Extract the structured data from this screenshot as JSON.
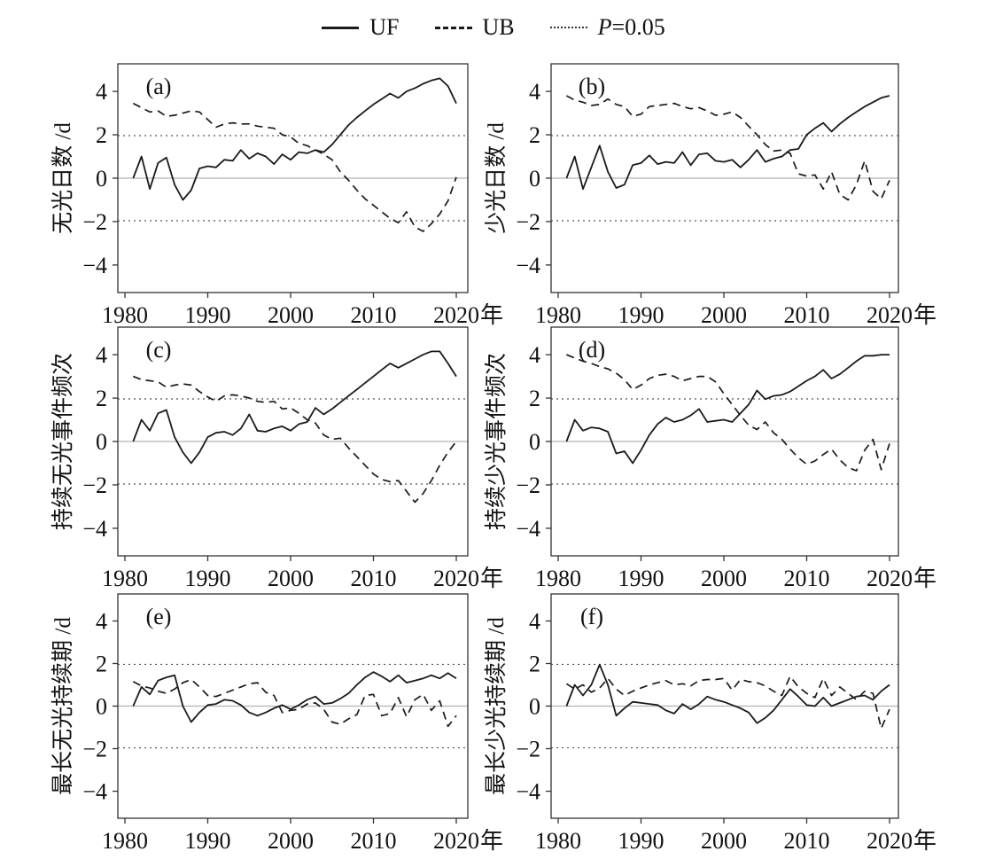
{
  "legend": {
    "items": [
      {
        "label": "UF",
        "line_style": "solid"
      },
      {
        "label": "UB",
        "line_style": "dashed"
      },
      {
        "prefix_italic": "P",
        "label": "=0.05",
        "line_style": "dotted"
      }
    ]
  },
  "chart_data": {
    "type": "line",
    "figure_kind": "Mann-Kendall abrupt-change test (UF/UB curves), 6 panels",
    "legend_position": "top-center",
    "grid": "off",
    "years": [
      1981,
      1982,
      1983,
      1984,
      1985,
      1986,
      1987,
      1988,
      1989,
      1990,
      1991,
      1992,
      1993,
      1994,
      1995,
      1996,
      1997,
      1998,
      1999,
      2000,
      2001,
      2002,
      2003,
      2004,
      2005,
      2006,
      2007,
      2008,
      2009,
      2010,
      2011,
      2012,
      2013,
      2014,
      2015,
      2016,
      2017,
      2018,
      2019,
      2020
    ],
    "xticks": [
      1980,
      1990,
      2000,
      2010,
      2020
    ],
    "x_unit_label": "年",
    "yticks": [
      -4,
      -2,
      0,
      2,
      4
    ],
    "ylim": [
      -5.27,
      5.27
    ],
    "significance_threshold": 1.96,
    "series_names": [
      "UF",
      "UB"
    ],
    "colors": {
      "uf_line": "#1a1a1a",
      "ub_line": "#1a1a1a",
      "p_line": "#555555",
      "zero_line": "#b3b3b3",
      "frame": "#333333"
    },
    "panels": [
      {
        "letter": "(a)",
        "ylabel": "无光日数 /d",
        "uf": [
          0,
          1.0,
          -0.5,
          0.7,
          0.95,
          -0.3,
          -1.0,
          -0.55,
          0.45,
          0.55,
          0.5,
          0.85,
          0.8,
          1.3,
          0.9,
          1.15,
          1.0,
          0.65,
          1.1,
          0.85,
          1.2,
          1.15,
          1.3,
          1.2,
          1.55,
          2.0,
          2.45,
          2.8,
          3.1,
          3.4,
          3.65,
          3.9,
          3.7,
          4.0,
          4.15,
          4.35,
          4.5,
          4.6,
          4.25,
          3.45
        ],
        "ub": [
          3.45,
          3.25,
          3.05,
          3.1,
          2.85,
          2.9,
          3.0,
          3.1,
          3.05,
          2.7,
          2.35,
          2.5,
          2.55,
          2.5,
          2.5,
          2.4,
          2.35,
          2.3,
          2.0,
          1.9,
          1.6,
          1.5,
          1.3,
          1.1,
          0.85,
          0.3,
          -0.1,
          -0.55,
          -0.95,
          -1.25,
          -1.55,
          -1.85,
          -2.05,
          -1.55,
          -2.25,
          -2.45,
          -2.1,
          -1.65,
          -1.05,
          0.05
        ]
      },
      {
        "letter": "(b)",
        "ylabel": "少光日数 /d",
        "uf": [
          0,
          1.0,
          -0.5,
          0.5,
          1.5,
          0.3,
          -0.45,
          -0.3,
          0.6,
          0.7,
          1.05,
          0.65,
          0.75,
          0.7,
          1.2,
          0.6,
          1.1,
          1.15,
          0.8,
          0.75,
          0.85,
          0.5,
          0.85,
          1.3,
          0.75,
          0.9,
          1.0,
          1.3,
          1.35,
          2.0,
          2.3,
          2.55,
          2.15,
          2.5,
          2.8,
          3.05,
          3.3,
          3.5,
          3.7,
          3.8
        ],
        "ub": [
          3.8,
          3.6,
          3.5,
          3.35,
          3.4,
          3.65,
          3.4,
          3.3,
          2.85,
          2.95,
          3.3,
          3.35,
          3.4,
          3.45,
          3.3,
          3.2,
          3.25,
          3.1,
          2.9,
          2.95,
          3.05,
          2.8,
          2.4,
          2.0,
          1.55,
          1.25,
          1.3,
          1.15,
          0.2,
          0.1,
          0.15,
          -0.5,
          0.3,
          -0.75,
          -1.0,
          -0.3,
          0.8,
          -0.6,
          -0.95,
          -0.1
        ]
      },
      {
        "letter": "(c)",
        "ylabel": "持续无光事件频次",
        "uf": [
          0,
          1.0,
          0.5,
          1.3,
          1.45,
          0.2,
          -0.5,
          -1.0,
          -0.5,
          0.2,
          0.4,
          0.45,
          0.3,
          0.6,
          1.25,
          0.5,
          0.45,
          0.6,
          0.7,
          0.5,
          0.8,
          0.9,
          1.55,
          1.25,
          1.5,
          1.8,
          2.1,
          2.4,
          2.7,
          3.0,
          3.3,
          3.6,
          3.4,
          3.6,
          3.8,
          4.0,
          4.15,
          4.15,
          3.6,
          3.0
        ],
        "ub": [
          3.0,
          2.85,
          2.8,
          2.75,
          2.5,
          2.6,
          2.65,
          2.6,
          2.3,
          2.05,
          1.85,
          2.1,
          2.15,
          2.1,
          2.0,
          1.85,
          1.8,
          1.85,
          1.5,
          1.55,
          1.3,
          1.0,
          0.85,
          0.3,
          0.1,
          0.15,
          -0.3,
          -0.7,
          -1.1,
          -1.5,
          -1.75,
          -1.85,
          -1.8,
          -2.3,
          -2.8,
          -2.4,
          -1.8,
          -1.1,
          -0.5,
          0.0
        ]
      },
      {
        "letter": "(d)",
        "ylabel": "持续少光事件频次",
        "uf": [
          0,
          1.0,
          0.5,
          0.65,
          0.6,
          0.45,
          -0.55,
          -0.45,
          -1.0,
          -0.4,
          0.3,
          0.8,
          1.1,
          0.9,
          1.0,
          1.2,
          1.5,
          0.9,
          0.95,
          1.0,
          0.9,
          1.3,
          1.7,
          2.35,
          1.95,
          2.1,
          2.15,
          2.3,
          2.55,
          2.8,
          3.0,
          3.3,
          2.9,
          3.1,
          3.4,
          3.7,
          3.95,
          3.95,
          4.0,
          4.0
        ],
        "ub": [
          4.0,
          3.85,
          3.7,
          3.6,
          3.45,
          3.35,
          3.15,
          2.85,
          2.4,
          2.6,
          2.9,
          3.05,
          3.1,
          3.0,
          2.8,
          2.9,
          3.0,
          3.0,
          2.75,
          2.2,
          1.7,
          1.2,
          0.75,
          0.55,
          0.9,
          0.4,
          0.1,
          -0.35,
          -0.75,
          -1.05,
          -0.9,
          -0.6,
          -0.35,
          -0.85,
          -1.2,
          -1.35,
          -0.4,
          0.1,
          -1.3,
          -0.1
        ]
      },
      {
        "letter": "(e)",
        "ylabel": "最长无光持续期 /d",
        "uf": [
          0,
          0.9,
          0.55,
          1.2,
          1.35,
          1.45,
          0.0,
          -0.75,
          -0.3,
          0.05,
          0.1,
          0.3,
          0.25,
          0.05,
          -0.3,
          -0.45,
          -0.3,
          -0.1,
          0.05,
          -0.15,
          0.05,
          0.3,
          0.45,
          0.1,
          0.15,
          0.35,
          0.6,
          1.0,
          1.35,
          1.6,
          1.4,
          1.15,
          1.45,
          1.1,
          1.2,
          1.3,
          1.45,
          1.3,
          1.55,
          1.3
        ],
        "ub": [
          1.15,
          0.95,
          0.85,
          0.7,
          0.6,
          0.8,
          1.1,
          1.25,
          0.9,
          0.5,
          0.45,
          0.6,
          0.75,
          0.9,
          1.05,
          1.1,
          0.65,
          0.5,
          -0.3,
          -0.2,
          -0.15,
          0.1,
          0.15,
          -0.15,
          -0.75,
          -0.85,
          -0.6,
          -0.4,
          0.5,
          0.55,
          -0.45,
          -0.35,
          0.4,
          -0.5,
          0.3,
          0.55,
          -0.2,
          0.25,
          -0.95,
          -0.45
        ]
      },
      {
        "letter": "(f)",
        "ylabel": "最长少光持续期 /d",
        "uf": [
          0,
          1.0,
          0.5,
          1.0,
          1.95,
          1.0,
          -0.45,
          -0.1,
          0.2,
          0.15,
          0.1,
          0.05,
          -0.2,
          -0.35,
          0.1,
          -0.15,
          0.1,
          0.45,
          0.3,
          0.2,
          0.05,
          -0.1,
          -0.3,
          -0.8,
          -0.55,
          -0.2,
          0.3,
          0.8,
          0.45,
          0.05,
          0.0,
          0.4,
          0.0,
          0.15,
          0.3,
          0.45,
          0.5,
          0.3,
          0.7,
          1.0
        ],
        "ub": [
          1.05,
          0.8,
          1.0,
          0.65,
          0.85,
          1.3,
          0.8,
          0.5,
          0.7,
          0.85,
          1.0,
          1.1,
          1.2,
          1.0,
          1.05,
          0.95,
          1.2,
          1.25,
          1.25,
          1.3,
          0.75,
          1.25,
          1.15,
          1.1,
          0.95,
          0.7,
          0.5,
          1.4,
          0.9,
          0.6,
          0.4,
          1.3,
          0.5,
          0.9,
          0.6,
          0.3,
          0.7,
          0.6,
          -1.05,
          -0.15
        ]
      }
    ]
  }
}
